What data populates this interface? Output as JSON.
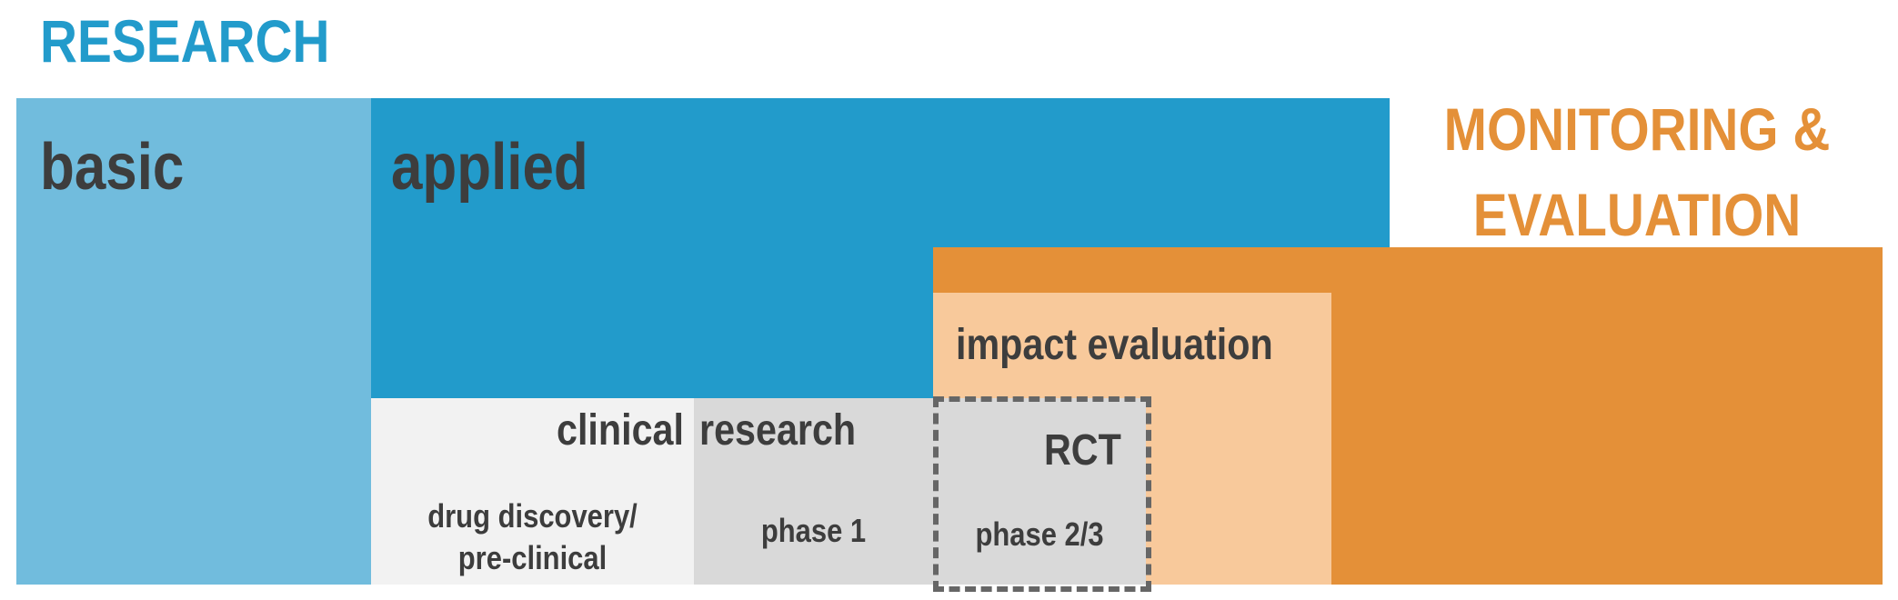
{
  "diagram": {
    "research": {
      "title": "RESEARCH",
      "basic": "basic",
      "applied": "applied",
      "clinical_part1": "clinical",
      "clinical_part2": "research",
      "drug_discovery_line1": "drug discovery/",
      "drug_discovery_line2": "pre-clinical",
      "phase1": "phase 1",
      "rct": "RCT",
      "phase23": "phase 2/3"
    },
    "me": {
      "title_line1": "MONITORING &",
      "title_line2": "EVALUATION",
      "impact": "impact evaluation"
    }
  },
  "colors": {
    "research_title": "#229bcb",
    "basic": "#71bcdd",
    "applied": "#229bcb",
    "clinical_left": "#f2f2f2",
    "clinical_right": "#d9d9d9",
    "me_title": "#e49038",
    "me_block": "#e49038",
    "impact": "#f8c99b",
    "text": "#3d3d3d",
    "rct_border": "#666666"
  }
}
